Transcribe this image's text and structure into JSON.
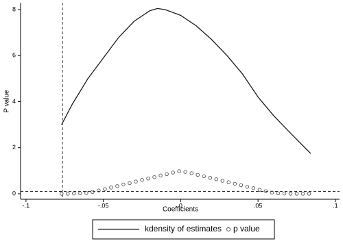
{
  "chart_data": {
    "type": "line",
    "xlabel": "Coefficients",
    "ylabel": "P value",
    "xlim": [
      -0.1035,
      0.1027
    ],
    "ylim": [
      -0.24,
      8.3
    ],
    "xticks": [
      {
        "value": -0.1,
        "label": "-.1"
      },
      {
        "value": -0.05,
        "label": "-.05"
      },
      0,
      {
        "value": 0.05,
        "label": ".05"
      },
      {
        "value": 0.1,
        "label": ".1"
      }
    ],
    "yticks": [
      0,
      2,
      4,
      6,
      8
    ],
    "xline": -0.0764,
    "yline": 0.1,
    "legend": "bottom",
    "series": [
      {
        "name": "kdensity of estimates",
        "type": "line",
        "color": "#1a1a1a",
        "x": [
          -0.077,
          -0.07,
          -0.06,
          -0.05,
          -0.04,
          -0.03,
          -0.02,
          -0.015,
          -0.01,
          0,
          0.01,
          0.02,
          0.03,
          0.04,
          0.05,
          0.06,
          0.07,
          0.084
        ],
        "values": [
          3.0,
          3.9,
          5.0,
          5.9,
          6.8,
          7.5,
          7.95,
          8.05,
          8.0,
          7.75,
          7.3,
          6.7,
          6.0,
          5.2,
          4.2,
          3.4,
          2.7,
          1.75
        ]
      },
      {
        "name": "p value",
        "type": "scatter",
        "color": "#555555",
        "x": [
          -0.077,
          -0.073,
          -0.069,
          -0.065,
          -0.061,
          -0.057,
          -0.053,
          -0.049,
          -0.045,
          -0.041,
          -0.037,
          -0.033,
          -0.029,
          -0.025,
          -0.021,
          -0.017,
          -0.013,
          -0.009,
          -0.005,
          -0.001,
          0.003,
          0.007,
          0.011,
          0.015,
          0.019,
          0.023,
          0.027,
          0.031,
          0.035,
          0.039,
          0.043,
          0.047,
          0.051,
          0.055,
          0.059,
          0.063,
          0.067,
          0.071,
          0.075,
          0.079,
          0.083
        ],
        "values": [
          0,
          0,
          0.01,
          0.02,
          0.03,
          0.08,
          0.14,
          0.2,
          0.27,
          0.33,
          0.4,
          0.46,
          0.53,
          0.6,
          0.66,
          0.72,
          0.79,
          0.85,
          0.92,
          0.98,
          0.95,
          0.89,
          0.82,
          0.76,
          0.69,
          0.63,
          0.56,
          0.5,
          0.43,
          0.37,
          0.3,
          0.24,
          0.17,
          0.11,
          0.05,
          0.02,
          0.01,
          0,
          0,
          0,
          0
        ]
      }
    ]
  }
}
